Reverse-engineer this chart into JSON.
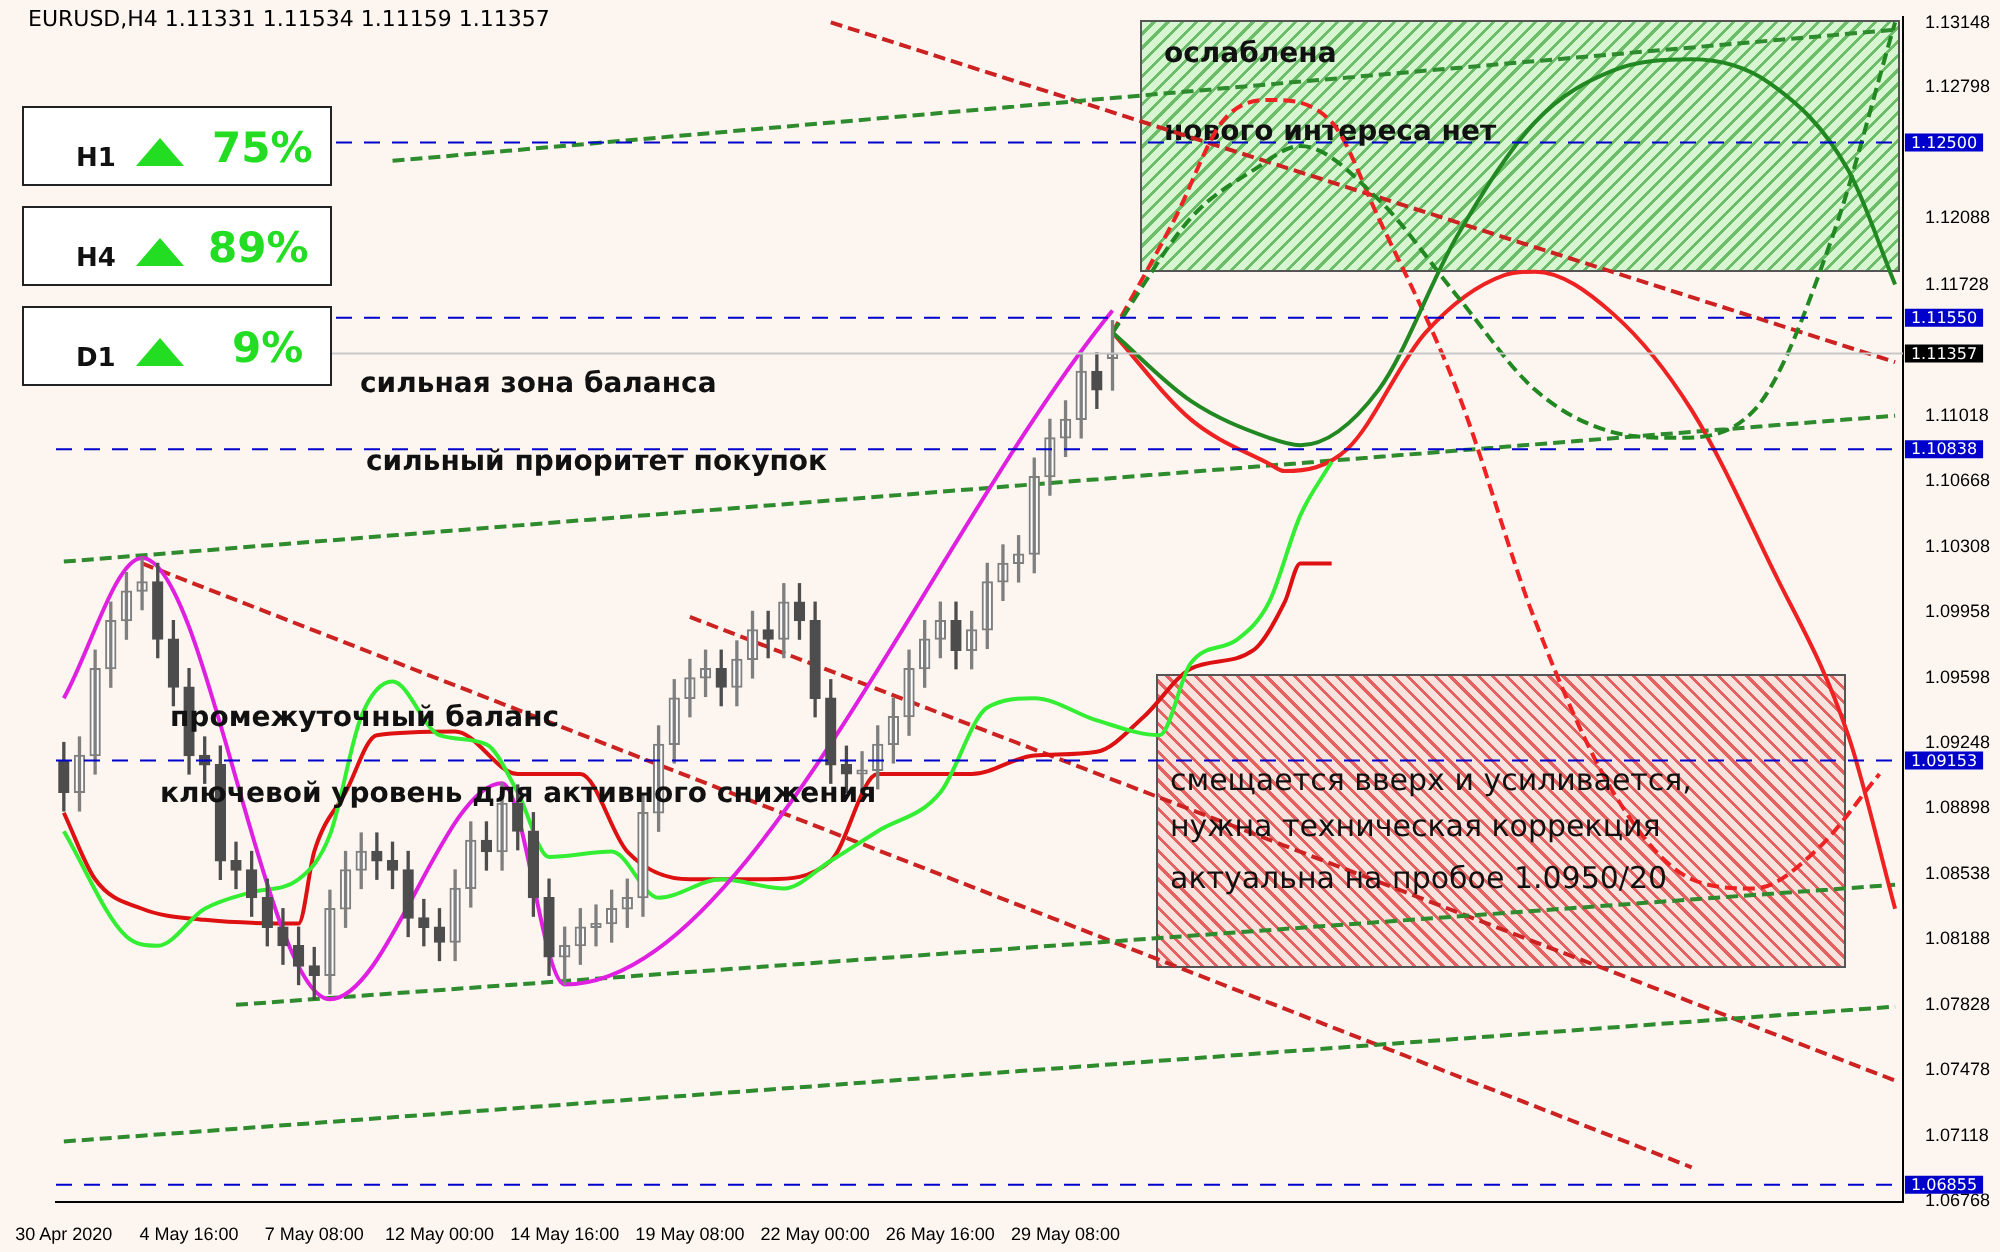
{
  "chart_data": {
    "type": "candlestick",
    "title": "EURUSD,H4  1.11331 1.11534 1.11159 1.11357",
    "colors": [
      "#4d4d4d",
      "#7f7f7f",
      "#7f7f7f",
      "#7f7f7f",
      "#7f7f7f",
      "#7f7f7f",
      "#4d4d4d",
      "#4d4d4d",
      "#4d4d4d",
      "#4d4d4d",
      "#4d4d4d",
      "#4d4d4d",
      "#4d4d4d",
      "#4d4d4d",
      "#4d4d4d",
      "#4d4d4d",
      "#4d4d4d",
      "#7f7f7f",
      "#7f7f7f",
      "#7f7f7f",
      "#4d4d4d",
      "#4d4d4d",
      "#4d4d4d",
      "#4d4d4d",
      "#4d4d4d",
      "#7f7f7f",
      "#7f7f7f",
      "#4d4d4d",
      "#7f7f7f",
      "#4d4d4d",
      "#4d4d4d",
      "#4d4d4d",
      "#7f7f7f",
      "#7f7f7f",
      "#7f7f7f",
      "#7f7f7f",
      "#7f7f7f",
      "#7f7f7f",
      "#7f7f7f",
      "#7f7f7f",
      "#7f7f7f",
      "#7f7f7f",
      "#4d4d4d",
      "#7f7f7f",
      "#7f7f7f",
      "#4d4d4d",
      "#7f7f7f",
      "#4d4d4d",
      "#4d4d4d",
      "#4d4d4d",
      "#4d4d4d",
      "#7f7f7f",
      "#7f7f7f",
      "#7f7f7f",
      "#7f7f7f",
      "#7f7f7f",
      "#7f7f7f",
      "#4d4d4d",
      "#7f7f7f",
      "#7f7f7f",
      "#7f7f7f",
      "#7f7f7f",
      "#7f7f7f",
      "#7f7f7f",
      "#7f7f7f",
      "#7f7f7f",
      "#4d4d4d",
      "#7f7f7f",
      null,
      null,
      null,
      null,
      null,
      null,
      null,
      null,
      null,
      null,
      null,
      null,
      null,
      null,
      null,
      null,
      null,
      null,
      null,
      null,
      null,
      null,
      null,
      null,
      null,
      null,
      null,
      null,
      null,
      null,
      null,
      null,
      null,
      null,
      null,
      null,
      null,
      null,
      null,
      null,
      null,
      null,
      null,
      null,
      null,
      null,
      null,
      null,
      null,
      null
    ],
    "categories": [
      "30 Apr 2020",
      null,
      null,
      null,
      null,
      null,
      null,
      null,
      "4 May 16:00",
      null,
      null,
      null,
      null,
      null,
      null,
      null,
      "7 May 08:00",
      null,
      null,
      null,
      null,
      null,
      null,
      null,
      "12 May 00:00",
      null,
      null,
      null,
      null,
      null,
      null,
      null,
      "14 May 16:00",
      null,
      null,
      null,
      null,
      null,
      null,
      null,
      "19 May 08:00",
      null,
      null,
      null,
      null,
      null,
      null,
      null,
      "22 May 00:00",
      null,
      null,
      null,
      null,
      null,
      null,
      null,
      "26 May 16:00",
      null,
      null,
      null,
      null,
      null,
      null,
      null,
      "29 May 08:00",
      null,
      null,
      null,
      null,
      null,
      null,
      null,
      null,
      null,
      null,
      null,
      null,
      null,
      null,
      null,
      null,
      null,
      null,
      null,
      null,
      null,
      null,
      null,
      null,
      null,
      null,
      null,
      null,
      null,
      null,
      null,
      null,
      null,
      null,
      null,
      null,
      null,
      null,
      null,
      null,
      null,
      null,
      null,
      null,
      null,
      null,
      null,
      null,
      null,
      null,
      null,
      null,
      null
    ],
    "ohlc": [
      [
        1.0915,
        1.0925,
        1.0888,
        1.0898
      ],
      [
        1.0898,
        1.0928,
        1.0888,
        1.0918
      ],
      [
        1.0918,
        1.0975,
        1.0908,
        1.0965
      ],
      [
        1.0965,
        1.1001,
        1.0955,
        1.0991
      ],
      [
        1.0991,
        1.1017,
        1.0981,
        1.1007
      ],
      [
        1.1007,
        1.1025,
        1.0997,
        1.1012
      ],
      [
        1.1012,
        1.1022,
        1.0971,
        1.0981
      ],
      [
        1.0981,
        1.0991,
        1.0945,
        1.0955
      ],
      [
        1.0955,
        1.0965,
        1.0908,
        1.0918
      ],
      [
        1.0918,
        1.0928,
        1.0903,
        1.0913
      ],
      [
        1.0913,
        1.0923,
        1.0851,
        1.0861
      ],
      [
        1.0861,
        1.0871,
        1.0846,
        1.0856
      ],
      [
        1.0856,
        1.0866,
        1.0831,
        1.0841
      ],
      [
        1.0841,
        1.0851,
        1.0815,
        1.0825
      ],
      [
        1.0825,
        1.0835,
        1.0805,
        1.0815
      ],
      [
        1.0815,
        1.0825,
        1.0794,
        1.0804
      ],
      [
        1.0804,
        1.0814,
        1.0786,
        1.0799
      ],
      [
        1.0799,
        1.0845,
        1.0789,
        1.0835
      ],
      [
        1.0835,
        1.0866,
        1.0825,
        1.0856
      ],
      [
        1.0856,
        1.0876,
        1.0846,
        1.0866
      ],
      [
        1.0866,
        1.0876,
        1.0851,
        1.0861
      ],
      [
        1.0861,
        1.0871,
        1.0846,
        1.0856
      ],
      [
        1.0856,
        1.0866,
        1.082,
        1.083
      ],
      [
        1.083,
        1.084,
        1.0815,
        1.0825
      ],
      [
        1.0825,
        1.0835,
        1.0807,
        1.0817
      ],
      [
        1.0817,
        1.0856,
        1.0807,
        1.0846
      ],
      [
        1.0846,
        1.0882,
        1.0836,
        1.0872
      ],
      [
        1.0872,
        1.0882,
        1.0856,
        1.0866
      ],
      [
        1.0866,
        1.0903,
        1.0856,
        1.0892
      ],
      [
        1.0892,
        1.0902,
        1.0867,
        1.0877
      ],
      [
        1.0877,
        1.0887,
        1.0831,
        1.0841
      ],
      [
        1.0841,
        1.0851,
        1.0799,
        1.0809
      ],
      [
        1.0809,
        1.0825,
        1.0794,
        1.0815
      ],
      [
        1.0815,
        1.0835,
        1.0805,
        1.0825
      ],
      [
        1.0825,
        1.0837,
        1.0815,
        1.0827
      ],
      [
        1.0827,
        1.0845,
        1.0817,
        1.0835
      ],
      [
        1.0835,
        1.0851,
        1.0825,
        1.0841
      ],
      [
        1.0841,
        1.0897,
        1.0831,
        1.0887
      ],
      [
        1.0887,
        1.0934,
        1.0877,
        1.0924
      ],
      [
        1.0924,
        1.0959,
        1.0914,
        1.0949
      ],
      [
        1.0949,
        1.097,
        1.0939,
        1.096
      ],
      [
        1.096,
        1.0975,
        1.095,
        1.0965
      ],
      [
        1.0965,
        1.0975,
        1.0945,
        1.0955
      ],
      [
        1.0955,
        1.098,
        1.0945,
        1.097
      ],
      [
        1.097,
        1.0996,
        1.096,
        1.0986
      ],
      [
        1.0986,
        1.0996,
        1.0971,
        1.0981
      ],
      [
        1.0981,
        1.1011,
        1.0971,
        1.1001
      ],
      [
        1.1001,
        1.1011,
        1.0981,
        1.0991
      ],
      [
        1.0991,
        1.1001,
        1.0939,
        1.0949
      ],
      [
        1.0949,
        1.0959,
        1.0903,
        1.0913
      ],
      [
        1.0913,
        1.0923,
        1.0898,
        1.0908
      ],
      [
        1.0908,
        1.092,
        1.0898,
        1.091
      ],
      [
        1.091,
        1.0934,
        1.09,
        1.0924
      ],
      [
        1.0924,
        1.0949,
        1.0914,
        1.0939
      ],
      [
        1.0939,
        1.0975,
        1.0929,
        1.0965
      ],
      [
        1.0965,
        1.0991,
        1.0955,
        1.0981
      ],
      [
        1.0981,
        1.1001,
        1.0971,
        1.0991
      ],
      [
        1.0991,
        1.1001,
        1.0965,
        1.0975
      ],
      [
        1.0975,
        1.0996,
        1.0965,
        1.0986
      ],
      [
        1.0986,
        1.1022,
        1.0976,
        1.1012
      ],
      [
        1.1012,
        1.1032,
        1.1002,
        1.1022
      ],
      [
        1.1022,
        1.1037,
        1.1012,
        1.1027
      ],
      [
        1.1027,
        1.1079,
        1.1017,
        1.1069
      ],
      [
        1.1069,
        1.11,
        1.1059,
        1.109
      ],
      [
        1.109,
        1.111,
        1.108,
        1.11
      ],
      [
        1.11,
        1.1136,
        1.109,
        1.1126
      ],
      [
        1.1126,
        1.1136,
        1.1106,
        1.1116
      ],
      [
        1.11331,
        1.11534,
        1.11159,
        1.11357
      ],
      null,
      null,
      null,
      null,
      null,
      null,
      null,
      null,
      null,
      null,
      null,
      null,
      null,
      null,
      null,
      null,
      null,
      null,
      null,
      null,
      null,
      null,
      null,
      null,
      null,
      null,
      null,
      null,
      null,
      null,
      null,
      null,
      null,
      null,
      null,
      null,
      null,
      null,
      null,
      null,
      null,
      null,
      null,
      null,
      null,
      null,
      null,
      null,
      null,
      null
    ],
    "series": [
      {
        "type": "line",
        "color": "#e020e0",
        "line_style": "solid",
        "values": [
          1.0949,
          null,
          null,
          null,
          null,
          1.1025,
          null,
          null,
          null,
          null,
          null,
          null,
          null,
          null,
          null,
          null,
          null,
          1.0786,
          null,
          null,
          null,
          null,
          null,
          null,
          null,
          null,
          null,
          null,
          1.0903,
          null,
          null,
          null,
          1.0794,
          null,
          null,
          null,
          null,
          null,
          null,
          null,
          null,
          null,
          null,
          null,
          null,
          null,
          null,
          null,
          null,
          null,
          null,
          null,
          null,
          null,
          null,
          null,
          null,
          null,
          null,
          null,
          null,
          null,
          null,
          null,
          null,
          null,
          null,
          1.1159,
          null,
          null,
          null,
          null,
          null,
          null,
          null,
          null,
          null,
          null,
          null,
          null,
          null,
          null,
          null,
          null,
          null,
          null,
          null,
          null,
          null,
          null,
          null,
          null,
          null,
          null,
          null,
          null,
          null,
          null,
          null,
          null,
          null,
          null,
          null,
          null,
          null,
          null,
          null,
          null,
          null,
          null,
          null,
          null,
          null,
          null,
          null,
          null,
          null,
          null
        ]
      },
      {
        "type": "line",
        "color": "#33ee33",
        "line_style": "solid",
        "values": [
          1.0877,
          null,
          null,
          null,
          1.082,
          null,
          1.0815,
          null,
          null,
          1.0835,
          null,
          null,
          1.0844,
          null,
          null,
          1.0851,
          null,
          1.0875,
          null,
          1.0939,
          null,
          1.0958,
          null,
          null,
          1.0929,
          null,
          null,
          1.0924,
          null,
          1.0898,
          null,
          1.0863,
          null,
          null,
          null,
          1.0866,
          null,
          null,
          1.0841,
          null,
          null,
          null,
          1.0851,
          null,
          null,
          null,
          1.0846,
          null,
          null,
          1.0861,
          null,
          null,
          1.0877,
          null,
          null,
          null,
          1.0898,
          null,
          null,
          1.0944,
          null,
          null,
          1.0949,
          null,
          null,
          null,
          1.0937,
          null,
          null,
          null,
          1.0929,
          null,
          1.0968,
          null,
          null,
          1.0981,
          null,
          1.1001,
          null,
          1.1048,
          null,
          1.1077,
          null,
          null,
          null,
          null,
          null,
          null,
          null,
          null,
          null,
          null,
          null,
          null,
          null,
          null,
          null,
          null,
          null,
          null,
          null,
          null,
          null,
          null,
          null,
          null,
          null,
          null,
          null,
          null,
          null,
          null,
          null,
          null,
          null,
          null,
          null,
          null
        ]
      },
      {
        "type": "line",
        "color": "#dd1111",
        "line_style": "solid",
        "values": [
          1.0887,
          null,
          1.0851,
          null,
          null,
          1.0835,
          null,
          null,
          null,
          1.0829,
          null,
          null,
          null,
          null,
          null,
          1.0827,
          1.0866,
          null,
          1.0898,
          null,
          1.0929,
          null,
          null,
          null,
          null,
          1.0931,
          null,
          null,
          null,
          1.0908,
          null,
          null,
          null,
          1.0908,
          null,
          null,
          1.0866,
          null,
          null,
          null,
          1.0851,
          null,
          null,
          null,
          null,
          1.0851,
          null,
          null,
          null,
          1.0861,
          null,
          null,
          1.0908,
          null,
          null,
          null,
          null,
          null,
          1.0908,
          null,
          null,
          null,
          1.0918,
          null,
          null,
          null,
          1.092,
          null,
          null,
          1.0939,
          null,
          null,
          1.0965,
          null,
          null,
          null,
          1.0975,
          null,
          1.1001,
          1.1022,
          null,
          1.1022,
          null,
          null,
          null,
          null,
          null,
          null,
          null,
          null,
          null,
          null,
          null,
          null,
          null,
          null,
          null,
          null,
          null,
          null,
          null,
          null,
          null,
          null,
          null,
          null,
          null,
          null,
          null,
          null,
          null,
          null,
          null,
          null,
          null,
          null,
          null,
          null
        ]
      },
      {
        "type": "line",
        "color": "#228822",
        "line_style": "solid",
        "values": [
          null,
          null,
          null,
          null,
          null,
          null,
          null,
          null,
          null,
          null,
          null,
          null,
          null,
          null,
          null,
          null,
          null,
          null,
          null,
          null,
          null,
          null,
          null,
          null,
          null,
          null,
          null,
          null,
          null,
          null,
          null,
          null,
          null,
          null,
          null,
          null,
          null,
          null,
          null,
          null,
          null,
          null,
          null,
          null,
          null,
          null,
          null,
          null,
          null,
          null,
          null,
          null,
          null,
          null,
          null,
          null,
          null,
          null,
          null,
          null,
          null,
          null,
          null,
          null,
          null,
          null,
          null,
          1.1147,
          null,
          null,
          null,
          null,
          1.111,
          null,
          null,
          null,
          null,
          1.109,
          null,
          1.1086,
          null,
          null,
          null,
          null,
          1.1116,
          null,
          null,
          null,
          null,
          1.1199,
          null,
          null,
          null,
          null,
          1.1261,
          null,
          null,
          null,
          null,
          1.1289,
          null,
          null,
          null,
          null,
          1.1295,
          null,
          null,
          null,
          null,
          1.1282,
          null,
          null,
          null,
          null,
          1.1235,
          null,
          null,
          1.1173
        ]
      },
      {
        "type": "line",
        "color": "#228822",
        "line_style": "dashed",
        "values": [
          null,
          null,
          null,
          null,
          null,
          null,
          null,
          null,
          null,
          null,
          null,
          null,
          null,
          null,
          null,
          null,
          null,
          null,
          null,
          null,
          null,
          null,
          null,
          null,
          null,
          null,
          null,
          null,
          null,
          null,
          null,
          null,
          null,
          null,
          null,
          null,
          null,
          null,
          null,
          null,
          null,
          null,
          null,
          null,
          null,
          null,
          null,
          null,
          null,
          null,
          null,
          null,
          null,
          null,
          null,
          null,
          null,
          null,
          null,
          null,
          null,
          null,
          null,
          null,
          null,
          null,
          null,
          1.1147,
          null,
          null,
          null,
          null,
          1.1209,
          null,
          null,
          null,
          1.1235,
          null,
          null,
          1.1248,
          null,
          null,
          null,
          null,
          1.1219,
          null,
          null,
          null,
          null,
          1.1167,
          null,
          null,
          null,
          null,
          1.1116,
          null,
          null,
          null,
          null,
          1.1093,
          null,
          null,
          null,
          1.109,
          null,
          null,
          null,
          null,
          1.1105,
          null,
          null,
          null,
          null,
          1.1199,
          null,
          null,
          null,
          1.1315
        ]
      },
      {
        "type": "line",
        "color": "#ee2222",
        "line_style": "solid",
        "values": [
          null,
          null,
          null,
          null,
          null,
          null,
          null,
          null,
          null,
          null,
          null,
          null,
          null,
          null,
          null,
          null,
          null,
          null,
          null,
          null,
          null,
          null,
          null,
          null,
          null,
          null,
          null,
          null,
          null,
          null,
          null,
          null,
          null,
          null,
          null,
          null,
          null,
          null,
          null,
          null,
          null,
          null,
          null,
          null,
          null,
          null,
          null,
          null,
          null,
          null,
          null,
          null,
          null,
          null,
          null,
          null,
          null,
          null,
          null,
          null,
          null,
          null,
          null,
          null,
          null,
          null,
          null,
          1.1147,
          null,
          null,
          null,
          null,
          1.11,
          null,
          null,
          null,
          null,
          1.1076,
          1.1072,
          null,
          null,
          null,
          1.1084,
          null,
          null,
          null,
          null,
          1.1147,
          null,
          null,
          null,
          null,
          1.1178,
          null,
          1.118,
          null,
          null,
          null,
          null,
          1.1157,
          null,
          null,
          null,
          null,
          1.1105,
          null,
          null,
          null,
          null,
          1.1022,
          null,
          null,
          null,
          null,
          1.0929,
          null,
          null,
          1.0835
        ]
      },
      {
        "type": "line",
        "color": "#ee2222",
        "line_style": "dashed",
        "values": [
          null,
          null,
          null,
          null,
          null,
          null,
          null,
          null,
          null,
          null,
          null,
          null,
          null,
          null,
          null,
          null,
          null,
          null,
          null,
          null,
          null,
          null,
          null,
          null,
          null,
          null,
          null,
          null,
          null,
          null,
          null,
          null,
          null,
          null,
          null,
          null,
          null,
          null,
          null,
          null,
          null,
          null,
          null,
          null,
          null,
          null,
          null,
          null,
          null,
          null,
          null,
          null,
          null,
          null,
          null,
          null,
          null,
          null,
          null,
          null,
          null,
          null,
          null,
          null,
          null,
          null,
          null,
          1.1147,
          null,
          null,
          null,
          1.1209,
          null,
          null,
          1.1261,
          null,
          null,
          1.1273,
          null,
          null,
          null,
          1.1261,
          null,
          null,
          1.1209,
          null,
          null,
          null,
          null,
          1.1116,
          null,
          null,
          null,
          null,
          1.0991,
          null,
          null,
          null,
          null,
          1.0898,
          null,
          null,
          null,
          null,
          1.0851,
          null,
          null,
          null,
          1.0846,
          null,
          null,
          null,
          1.0867,
          null,
          null,
          null,
          1.0908,
          null
        ]
      },
      {
        "type": "line",
        "color": "#2e8b2e",
        "line_style": "dashed",
        "values": [
          1.1023,
          null,
          null,
          null,
          null,
          null,
          null,
          null,
          null,
          null,
          null,
          null,
          null,
          null,
          null,
          null,
          null,
          null,
          null,
          null,
          null,
          null,
          null,
          null,
          null,
          null,
          null,
          null,
          null,
          null,
          null,
          null,
          null,
          null,
          null,
          null,
          null,
          null,
          null,
          null,
          null,
          null,
          null,
          null,
          null,
          null,
          null,
          null,
          null,
          null,
          null,
          null,
          null,
          null,
          null,
          null,
          null,
          null,
          null,
          null,
          null,
          null,
          null,
          null,
          null,
          null,
          null,
          null,
          null,
          null,
          null,
          null,
          null,
          null,
          null,
          null,
          null,
          null,
          null,
          null,
          null,
          null,
          null,
          null,
          null,
          null,
          null,
          null,
          null,
          null,
          null,
          null,
          null,
          null,
          null,
          null,
          null,
          null,
          null,
          null,
          null,
          null,
          null,
          null,
          null,
          null,
          null,
          null,
          null,
          null,
          null,
          null,
          null,
          null,
          null,
          null,
          null,
          1.1102
        ]
      },
      {
        "type": "line",
        "color": "#2e8b2e",
        "line_style": "dashed",
        "values": [
          null,
          null,
          null,
          null,
          null,
          null,
          null,
          null,
          null,
          null,
          null,
          null,
          null,
          null,
          null,
          null,
          null,
          null,
          null,
          null,
          null,
          1.124,
          null,
          null,
          null,
          null,
          null,
          null,
          null,
          null,
          null,
          null,
          null,
          null,
          null,
          null,
          null,
          null,
          null,
          null,
          null,
          null,
          null,
          null,
          null,
          null,
          null,
          null,
          null,
          null,
          null,
          null,
          null,
          null,
          null,
          null,
          null,
          null,
          null,
          null,
          null,
          null,
          null,
          null,
          null,
          null,
          null,
          null,
          null,
          null,
          null,
          null,
          null,
          null,
          null,
          null,
          null,
          null,
          null,
          null,
          null,
          null,
          null,
          null,
          null,
          null,
          null,
          null,
          null,
          null,
          null,
          null,
          null,
          null,
          null,
          null,
          null,
          null,
          null,
          null,
          null,
          null,
          null,
          null,
          null,
          null,
          null,
          null,
          null,
          null,
          null,
          null,
          null,
          null,
          null,
          null,
          null,
          1.1311
        ]
      },
      {
        "type": "line",
        "color": "#2e8b2e",
        "line_style": "dashed",
        "values": [
          null,
          null,
          null,
          null,
          null,
          null,
          null,
          null,
          null,
          null,
          null,
          1.0783,
          null,
          null,
          null,
          null,
          null,
          null,
          null,
          null,
          null,
          null,
          null,
          null,
          null,
          null,
          null,
          null,
          null,
          null,
          null,
          null,
          null,
          null,
          null,
          null,
          null,
          null,
          null,
          null,
          null,
          null,
          null,
          null,
          null,
          null,
          null,
          null,
          null,
          null,
          null,
          null,
          null,
          null,
          null,
          null,
          null,
          null,
          null,
          null,
          null,
          null,
          null,
          null,
          null,
          null,
          null,
          null,
          null,
          null,
          null,
          null,
          null,
          null,
          null,
          null,
          null,
          null,
          null,
          null,
          null,
          null,
          null,
          null,
          null,
          null,
          null,
          null,
          null,
          null,
          null,
          null,
          null,
          null,
          null,
          null,
          null,
          null,
          null,
          null,
          null,
          null,
          null,
          null,
          null,
          null,
          null,
          null,
          null,
          null,
          null,
          null,
          null,
          null,
          null,
          null,
          null,
          1.0848
        ]
      },
      {
        "type": "line",
        "color": "#2e8b2e",
        "line_style": "dashed",
        "values": [
          1.0709,
          null,
          null,
          null,
          null,
          null,
          null,
          null,
          null,
          null,
          null,
          null,
          null,
          null,
          null,
          null,
          null,
          null,
          null,
          null,
          null,
          null,
          null,
          null,
          null,
          null,
          null,
          null,
          null,
          null,
          null,
          null,
          null,
          null,
          null,
          null,
          null,
          null,
          null,
          null,
          null,
          null,
          null,
          null,
          null,
          null,
          null,
          null,
          null,
          null,
          null,
          null,
          null,
          null,
          null,
          null,
          null,
          null,
          null,
          null,
          null,
          null,
          null,
          null,
          null,
          null,
          null,
          null,
          null,
          null,
          null,
          null,
          null,
          null,
          null,
          null,
          null,
          null,
          null,
          null,
          null,
          null,
          null,
          null,
          null,
          null,
          null,
          null,
          null,
          null,
          null,
          null,
          null,
          null,
          null,
          null,
          null,
          null,
          null,
          null,
          null,
          null,
          null,
          null,
          null,
          null,
          null,
          null,
          null,
          null,
          null,
          null,
          null,
          null,
          null,
          null,
          null,
          1.0782
        ]
      },
      {
        "type": "line",
        "color": "#cc2222",
        "line_style": "dashed",
        "values": [
          null,
          null,
          null,
          null,
          null,
          1.1022,
          null,
          null,
          null,
          null,
          null,
          null,
          null,
          null,
          null,
          null,
          null,
          null,
          null,
          null,
          null,
          null,
          null,
          null,
          null,
          null,
          null,
          null,
          null,
          null,
          null,
          null,
          null,
          null,
          null,
          null,
          null,
          null,
          null,
          null,
          null,
          null,
          null,
          null,
          null,
          null,
          null,
          null,
          null,
          null,
          null,
          null,
          null,
          null,
          null,
          null,
          null,
          null,
          null,
          null,
          null,
          null,
          null,
          null,
          null,
          null,
          null,
          null,
          null,
          null,
          null,
          null,
          null,
          null,
          null,
          null,
          null,
          null,
          null,
          null,
          null,
          null,
          null,
          null,
          null,
          null,
          null,
          null,
          null,
          null,
          null,
          null,
          null,
          null,
          null,
          null,
          null,
          null,
          null,
          null,
          null,
          null,
          null,
          null,
          1.0695,
          null,
          null,
          null,
          null,
          null,
          null,
          null,
          null,
          null,
          null,
          null,
          null,
          null
        ]
      },
      {
        "type": "line",
        "color": "#cc2222",
        "line_style": "dashed",
        "values": [
          null,
          null,
          null,
          null,
          null,
          null,
          null,
          null,
          null,
          null,
          null,
          null,
          null,
          null,
          null,
          null,
          null,
          null,
          null,
          null,
          null,
          null,
          null,
          null,
          null,
          null,
          null,
          null,
          null,
          null,
          null,
          null,
          null,
          null,
          null,
          null,
          null,
          null,
          null,
          null,
          null,
          null,
          null,
          null,
          null,
          null,
          null,
          null,
          null,
          1.1315,
          null,
          null,
          null,
          null,
          null,
          null,
          null,
          null,
          null,
          null,
          null,
          null,
          null,
          null,
          null,
          null,
          null,
          null,
          null,
          null,
          null,
          null,
          null,
          null,
          null,
          null,
          null,
          null,
          null,
          null,
          null,
          null,
          null,
          null,
          null,
          null,
          null,
          null,
          null,
          null,
          null,
          null,
          null,
          null,
          null,
          null,
          null,
          null,
          null,
          null,
          null,
          null,
          null,
          null,
          null,
          null,
          null,
          null,
          null,
          null,
          null,
          null,
          null,
          null,
          null,
          null,
          null,
          1.1131
        ]
      },
      {
        "type": "line",
        "color": "#cc2222",
        "line_style": "dashed",
        "values": [
          null,
          null,
          null,
          null,
          null,
          null,
          null,
          null,
          null,
          null,
          null,
          null,
          null,
          null,
          null,
          null,
          null,
          null,
          null,
          null,
          null,
          null,
          null,
          null,
          null,
          null,
          null,
          null,
          null,
          null,
          null,
          null,
          null,
          null,
          null,
          null,
          null,
          null,
          null,
          null,
          1.0993,
          null,
          null,
          null,
          null,
          null,
          null,
          null,
          null,
          null,
          null,
          null,
          null,
          null,
          null,
          null,
          null,
          null,
          null,
          null,
          null,
          null,
          null,
          null,
          null,
          null,
          null,
          null,
          null,
          null,
          null,
          null,
          null,
          null,
          null,
          null,
          null,
          null,
          null,
          null,
          null,
          null,
          null,
          null,
          null,
          null,
          null,
          null,
          null,
          null,
          null,
          null,
          null,
          null,
          null,
          null,
          null,
          null,
          null,
          null,
          null,
          null,
          null,
          null,
          null,
          null,
          null,
          null,
          null,
          null,
          null,
          null,
          null,
          null,
          null,
          null,
          null,
          1.0742
        ]
      }
    ],
    "ylim": [
      1.0676,
      1.1318
    ],
    "yticks": [
      1.13148,
      1.12798,
      1.12088,
      1.11728,
      1.11018,
      1.10668,
      1.10308,
      1.09958,
      1.09598,
      1.09248,
      1.08898,
      1.08538,
      1.08188,
      1.07828,
      1.07478,
      1.07118,
      1.06768
    ],
    "ref_lines": [
      {
        "axis": "y",
        "value": 1.125,
        "label": "1.12500",
        "color": "#0000cc",
        "line_style": "dashed"
      },
      {
        "axis": "y",
        "value": 1.1155,
        "label": "1.11550",
        "color": "#0000cc",
        "line_style": "dashed"
      },
      {
        "axis": "y",
        "value": 1.10838,
        "label": "1.10838",
        "color": "#0000cc",
        "line_style": "dashed"
      },
      {
        "axis": "y",
        "value": 1.09153,
        "label": "1.09153",
        "color": "#0000cc",
        "line_style": "dashed"
      },
      {
        "axis": "y",
        "value": 1.06855,
        "label": "1.06855",
        "color": "#0000cc",
        "line_style": "dashed"
      },
      {
        "axis": "y",
        "value": 1.11357,
        "label": "1.11357",
        "color": "#c8c8c8",
        "line_style": "solid"
      }
    ],
    "annotations": [
      "сильная зона баланса",
      "сильный приоритет покупок",
      "промежуточный баланс",
      "ключевой уровень для активного снижения",
      "ослаблена",
      "нового интереса нет",
      "смещается вверх и усиливается,",
      "нужна техническая коррекция",
      "актуальна на пробое 1.0950/20",
      "H1",
      "75%",
      "H4",
      "89%",
      "D1",
      "9%"
    ]
  }
}
